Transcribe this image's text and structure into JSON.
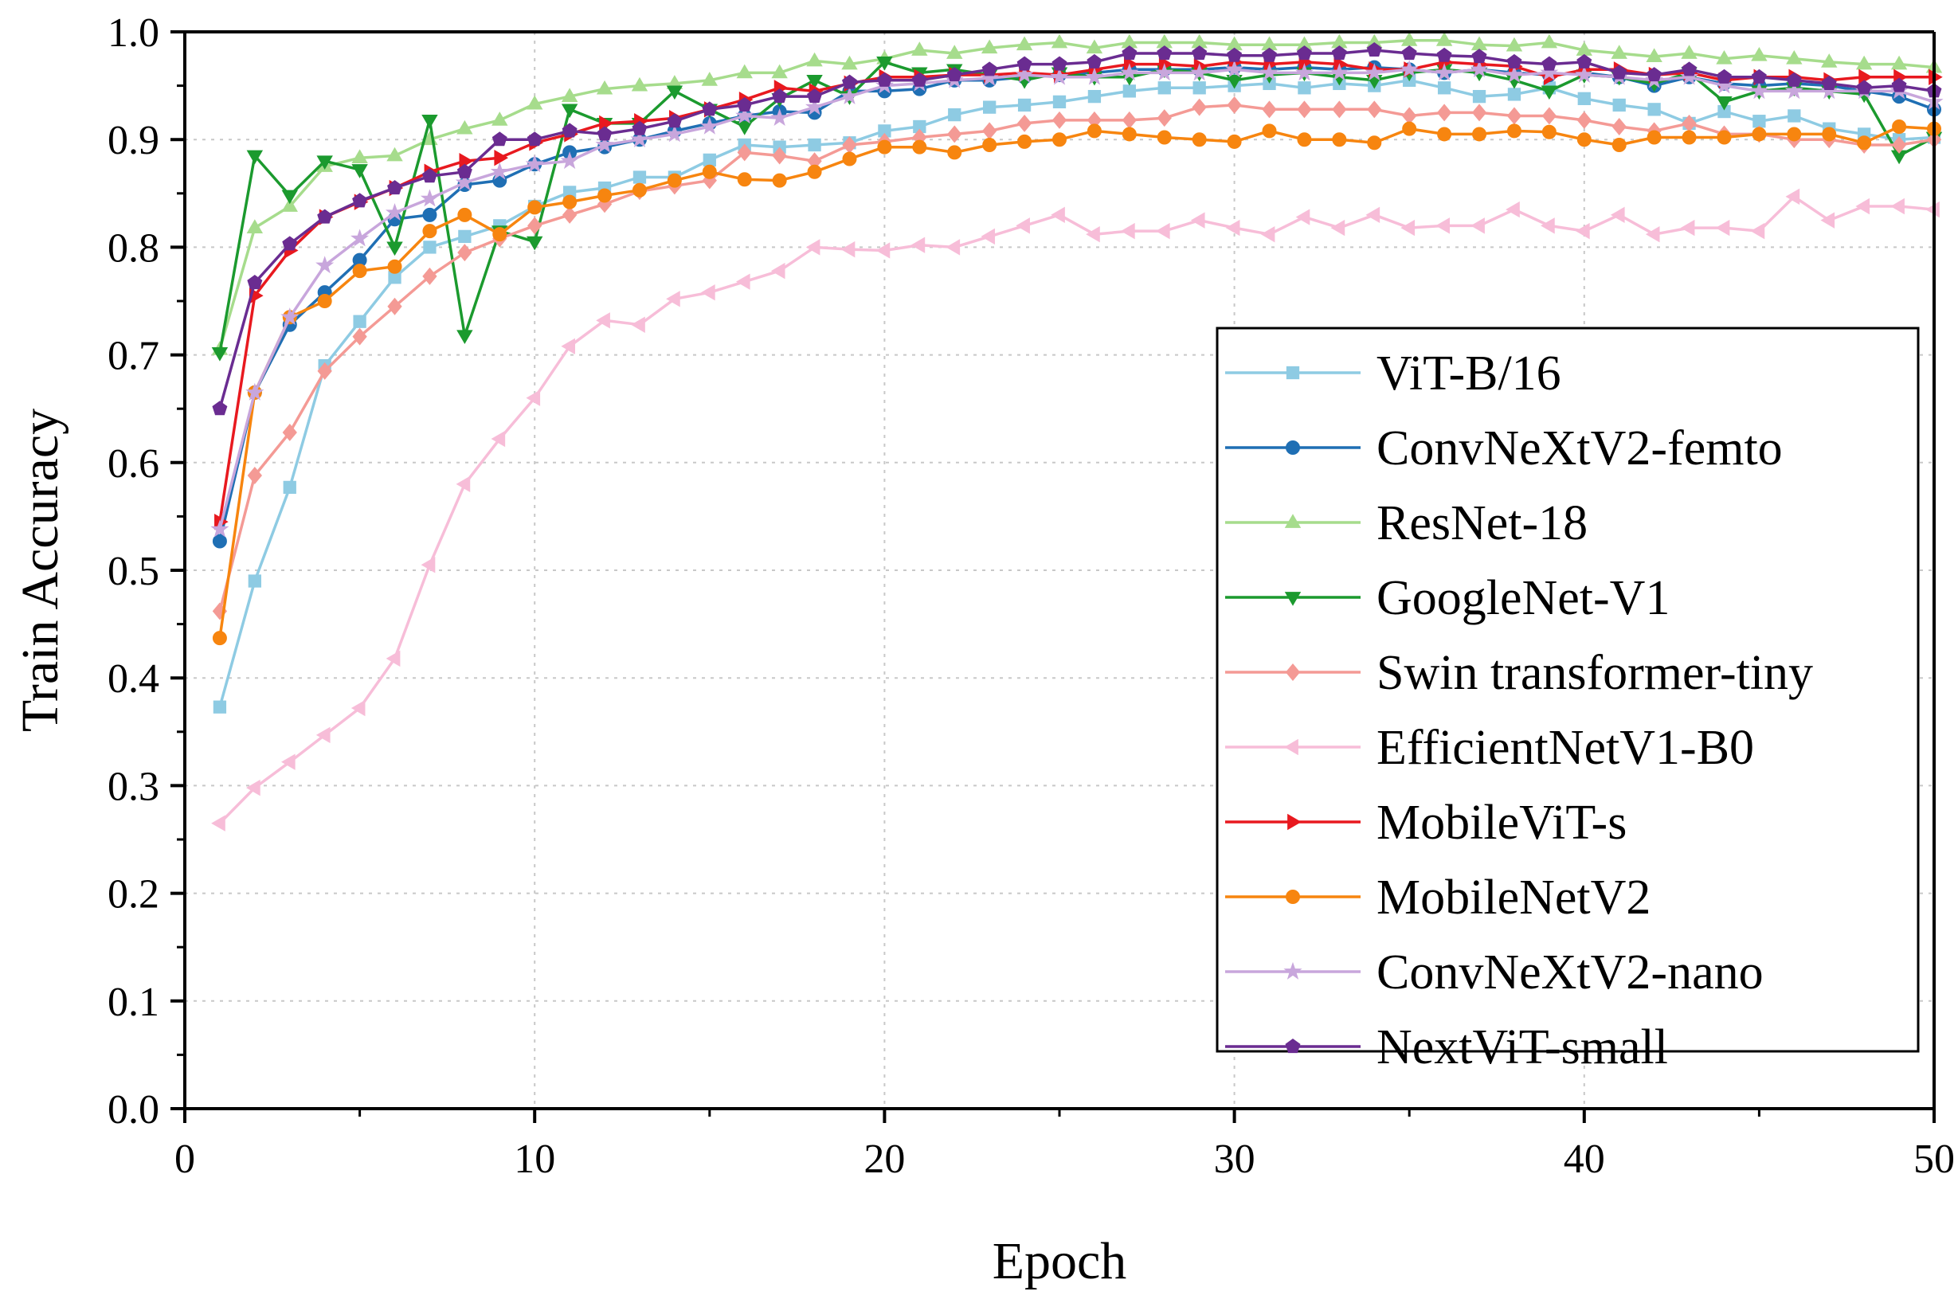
{
  "chart_data": {
    "type": "line",
    "title": "",
    "xlabel": "Epoch",
    "ylabel": "Train Accuracy",
    "xlim": [
      0,
      50
    ],
    "ylim": [
      0.0,
      1.0
    ],
    "xticks": [
      "0",
      "10",
      "20",
      "30",
      "40",
      "50"
    ],
    "yticks": [
      "0.0",
      "0.1",
      "0.2",
      "0.3",
      "0.4",
      "0.5",
      "0.6",
      "0.7",
      "0.8",
      "0.9",
      "1.0"
    ],
    "grid": true,
    "legend_position": "right-center",
    "x": [
      1,
      2,
      3,
      4,
      5,
      6,
      7,
      8,
      9,
      10,
      11,
      12,
      13,
      14,
      15,
      16,
      17,
      18,
      19,
      20,
      21,
      22,
      23,
      24,
      25,
      26,
      27,
      28,
      29,
      30,
      31,
      32,
      33,
      34,
      35,
      36,
      37,
      38,
      39,
      40,
      41,
      42,
      43,
      44,
      45,
      46,
      47,
      48,
      49,
      50
    ],
    "series": [
      {
        "name": "ViT-B/16",
        "color": "#8ecbe3",
        "marker": "square",
        "values": [
          0.373,
          0.49,
          0.577,
          0.69,
          0.731,
          0.772,
          0.8,
          0.81,
          0.82,
          0.838,
          0.851,
          0.855,
          0.865,
          0.865,
          0.881,
          0.895,
          0.893,
          0.895,
          0.897,
          0.908,
          0.912,
          0.923,
          0.93,
          0.932,
          0.935,
          0.94,
          0.945,
          0.948,
          0.948,
          0.95,
          0.952,
          0.948,
          0.952,
          0.95,
          0.955,
          0.948,
          0.94,
          0.942,
          0.948,
          0.938,
          0.932,
          0.928,
          0.915,
          0.926,
          0.917,
          0.922,
          0.91,
          0.905,
          0.9,
          0.902
        ]
      },
      {
        "name": "ConvNeXtV2-femto",
        "color": "#1f6fb4",
        "marker": "circle",
        "values": [
          0.527,
          0.665,
          0.728,
          0.758,
          0.788,
          0.826,
          0.83,
          0.858,
          0.862,
          0.877,
          0.888,
          0.893,
          0.9,
          0.908,
          0.915,
          0.922,
          0.926,
          0.925,
          0.945,
          0.945,
          0.947,
          0.955,
          0.955,
          0.958,
          0.96,
          0.962,
          0.965,
          0.965,
          0.965,
          0.967,
          0.965,
          0.967,
          0.965,
          0.967,
          0.965,
          0.962,
          0.965,
          0.962,
          0.96,
          0.962,
          0.958,
          0.95,
          0.958,
          0.952,
          0.95,
          0.952,
          0.95,
          0.945,
          0.94,
          0.928
        ]
      },
      {
        "name": "ResNet-18",
        "color": "#a6dc8c",
        "marker": "triangle-up",
        "values": [
          0.705,
          0.818,
          0.838,
          0.875,
          0.883,
          0.885,
          0.9,
          0.91,
          0.918,
          0.933,
          0.94,
          0.947,
          0.95,
          0.952,
          0.955,
          0.962,
          0.962,
          0.973,
          0.97,
          0.975,
          0.983,
          0.98,
          0.985,
          0.988,
          0.99,
          0.985,
          0.99,
          0.99,
          0.99,
          0.988,
          0.988,
          0.988,
          0.99,
          0.99,
          0.992,
          0.992,
          0.988,
          0.987,
          0.99,
          0.983,
          0.98,
          0.977,
          0.98,
          0.975,
          0.978,
          0.975,
          0.972,
          0.97,
          0.97,
          0.967
        ]
      },
      {
        "name": "GoogleNet-V1",
        "color": "#1b9a2e",
        "marker": "triangle-down",
        "values": [
          0.702,
          0.885,
          0.848,
          0.88,
          0.872,
          0.8,
          0.918,
          0.718,
          0.815,
          0.805,
          0.928,
          0.915,
          0.915,
          0.945,
          0.928,
          0.912,
          0.938,
          0.955,
          0.94,
          0.972,
          0.962,
          0.965,
          0.96,
          0.955,
          0.962,
          0.958,
          0.958,
          0.965,
          0.962,
          0.955,
          0.96,
          0.962,
          0.958,
          0.955,
          0.962,
          0.965,
          0.962,
          0.955,
          0.945,
          0.96,
          0.958,
          0.952,
          0.962,
          0.935,
          0.945,
          0.948,
          0.945,
          0.942,
          0.885,
          0.902
        ]
      },
      {
        "name": "Swin transformer-tiny",
        "color": "#f49a95",
        "marker": "diamond",
        "values": [
          0.462,
          0.588,
          0.628,
          0.685,
          0.717,
          0.745,
          0.773,
          0.795,
          0.808,
          0.82,
          0.83,
          0.84,
          0.852,
          0.857,
          0.862,
          0.888,
          0.885,
          0.88,
          0.895,
          0.898,
          0.902,
          0.905,
          0.908,
          0.915,
          0.918,
          0.918,
          0.918,
          0.92,
          0.93,
          0.932,
          0.928,
          0.928,
          0.928,
          0.928,
          0.922,
          0.925,
          0.925,
          0.922,
          0.922,
          0.918,
          0.912,
          0.908,
          0.915,
          0.905,
          0.905,
          0.9,
          0.9,
          0.895,
          0.895,
          0.9
        ]
      },
      {
        "name": "EfficientNetV1-B0",
        "color": "#f7bdd8",
        "marker": "triangle-left",
        "values": [
          0.265,
          0.298,
          0.322,
          0.347,
          0.372,
          0.418,
          0.505,
          0.58,
          0.622,
          0.66,
          0.708,
          0.732,
          0.728,
          0.752,
          0.758,
          0.768,
          0.778,
          0.8,
          0.798,
          0.797,
          0.802,
          0.8,
          0.81,
          0.82,
          0.83,
          0.812,
          0.815,
          0.815,
          0.825,
          0.818,
          0.812,
          0.828,
          0.818,
          0.83,
          0.818,
          0.82,
          0.82,
          0.835,
          0.82,
          0.815,
          0.83,
          0.812,
          0.818,
          0.818,
          0.815,
          0.847,
          0.825,
          0.838,
          0.838,
          0.835
        ]
      },
      {
        "name": "MobileViT-s",
        "color": "#e8191f",
        "marker": "triangle-right",
        "values": [
          0.545,
          0.755,
          0.797,
          0.828,
          0.842,
          0.855,
          0.87,
          0.88,
          0.883,
          0.897,
          0.905,
          0.915,
          0.917,
          0.92,
          0.928,
          0.937,
          0.948,
          0.945,
          0.952,
          0.958,
          0.958,
          0.96,
          0.96,
          0.962,
          0.96,
          0.965,
          0.97,
          0.97,
          0.968,
          0.972,
          0.97,
          0.972,
          0.97,
          0.965,
          0.965,
          0.972,
          0.97,
          0.968,
          0.958,
          0.965,
          0.965,
          0.96,
          0.962,
          0.955,
          0.958,
          0.958,
          0.955,
          0.958,
          0.958,
          0.958
        ]
      },
      {
        "name": "MobileNetV2",
        "color": "#f7850f",
        "marker": "circle",
        "values": [
          0.437,
          0.665,
          0.735,
          0.75,
          0.778,
          0.782,
          0.815,
          0.83,
          0.812,
          0.837,
          0.842,
          0.848,
          0.853,
          0.862,
          0.87,
          0.863,
          0.862,
          0.87,
          0.882,
          0.893,
          0.893,
          0.888,
          0.895,
          0.898,
          0.9,
          0.908,
          0.905,
          0.902,
          0.9,
          0.898,
          0.908,
          0.9,
          0.9,
          0.897,
          0.91,
          0.905,
          0.905,
          0.908,
          0.907,
          0.9,
          0.895,
          0.902,
          0.902,
          0.902,
          0.905,
          0.905,
          0.905,
          0.897,
          0.912,
          0.91
        ]
      },
      {
        "name": "ConvNeXtV2-nano",
        "color": "#c8a6dc",
        "marker": "star",
        "values": [
          0.538,
          0.665,
          0.735,
          0.783,
          0.808,
          0.832,
          0.845,
          0.86,
          0.87,
          0.877,
          0.88,
          0.895,
          0.9,
          0.905,
          0.912,
          0.922,
          0.92,
          0.93,
          0.94,
          0.95,
          0.952,
          0.955,
          0.957,
          0.96,
          0.958,
          0.958,
          0.962,
          0.962,
          0.962,
          0.965,
          0.962,
          0.962,
          0.962,
          0.962,
          0.965,
          0.962,
          0.965,
          0.96,
          0.962,
          0.96,
          0.958,
          0.955,
          0.958,
          0.95,
          0.945,
          0.945,
          0.945,
          0.945,
          0.945,
          0.935
        ]
      },
      {
        "name": "NextViT-small",
        "color": "#6a2c91",
        "marker": "pentagon",
        "values": [
          0.65,
          0.767,
          0.803,
          0.828,
          0.843,
          0.855,
          0.866,
          0.87,
          0.9,
          0.9,
          0.908,
          0.905,
          0.91,
          0.917,
          0.928,
          0.932,
          0.94,
          0.94,
          0.953,
          0.955,
          0.955,
          0.96,
          0.965,
          0.97,
          0.97,
          0.972,
          0.98,
          0.98,
          0.98,
          0.978,
          0.978,
          0.98,
          0.98,
          0.983,
          0.98,
          0.978,
          0.977,
          0.972,
          0.97,
          0.972,
          0.962,
          0.96,
          0.965,
          0.958,
          0.958,
          0.955,
          0.952,
          0.948,
          0.95,
          0.945
        ]
      }
    ]
  }
}
